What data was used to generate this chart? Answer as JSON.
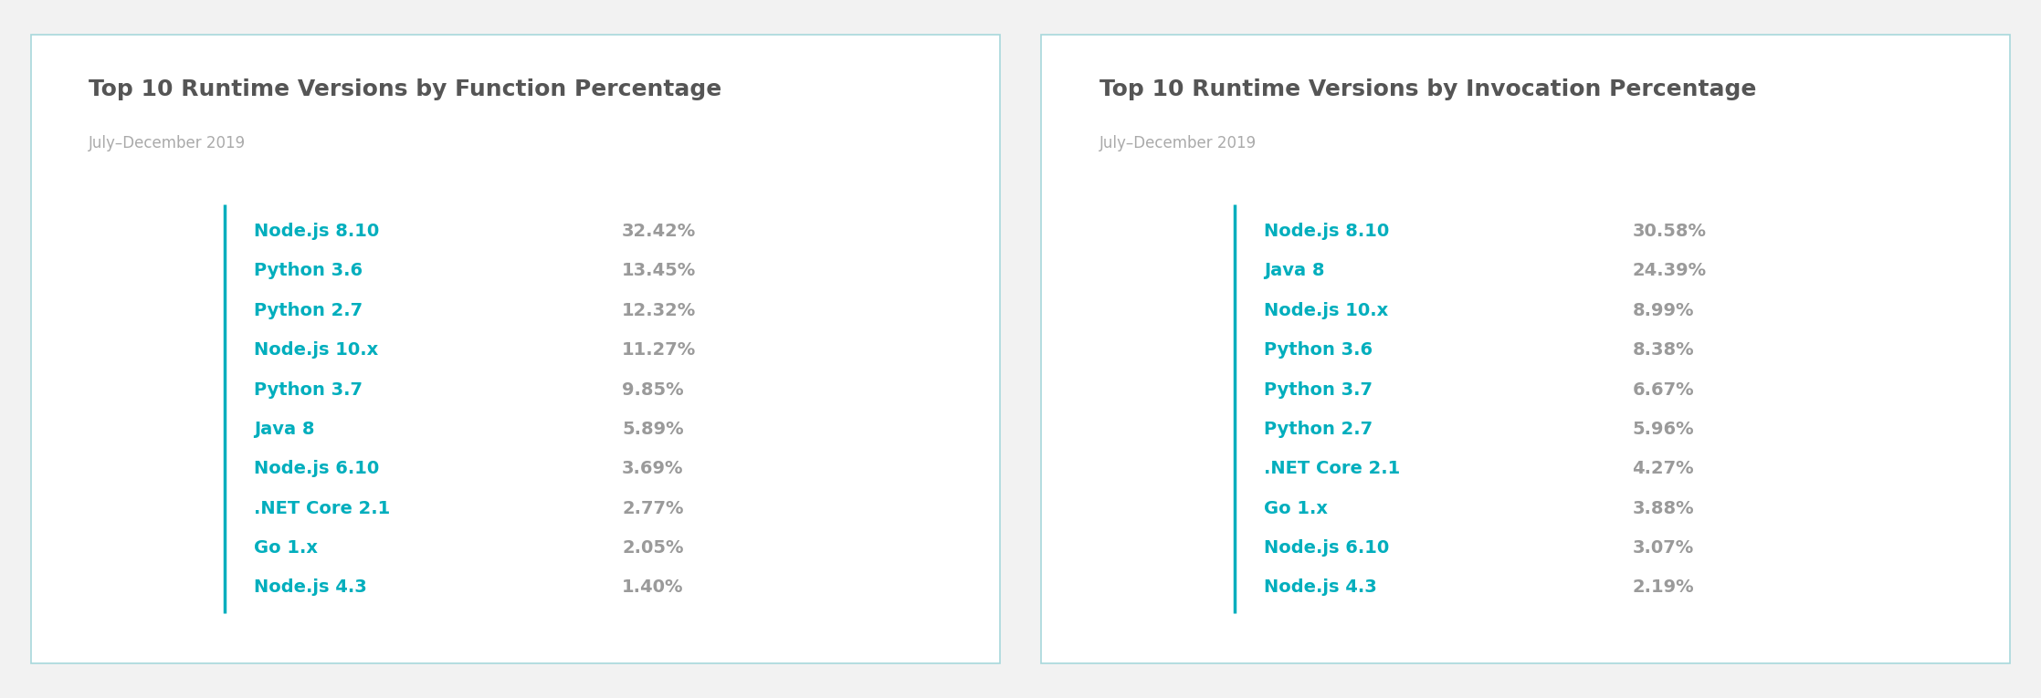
{
  "chart1": {
    "title": "Top 10 Runtime Versions by Function Percentage",
    "subtitle": "July–December 2019",
    "labels": [
      "Node.js 8.10",
      "Python 3.6",
      "Python 2.7",
      "Node.js 10.x",
      "Python 3.7",
      "Java 8",
      "Node.js 6.10",
      ".NET Core 2.1",
      "Go 1.x",
      "Node.js 4.3"
    ],
    "values": [
      "32.42%",
      "13.45%",
      "12.32%",
      "11.27%",
      "9.85%",
      "5.89%",
      "3.69%",
      "2.77%",
      "2.05%",
      "1.40%"
    ]
  },
  "chart2": {
    "title": "Top 10 Runtime Versions by Invocation Percentage",
    "subtitle": "July–December 2019",
    "labels": [
      "Node.js 8.10",
      "Java 8",
      "Node.js 10.x",
      "Python 3.6",
      "Python 3.7",
      "Python 2.7",
      ".NET Core 2.1",
      "Go 1.x",
      "Node.js 6.10",
      "Node.js 4.3"
    ],
    "values": [
      "30.58%",
      "24.39%",
      "8.99%",
      "8.38%",
      "6.67%",
      "5.96%",
      "4.27%",
      "3.88%",
      "3.07%",
      "2.19%"
    ]
  },
  "label_color": "#00AEBD",
  "value_color": "#9A9A9A",
  "title_color": "#555555",
  "subtitle_color": "#AAAAAA",
  "bg_color": "#FFFFFF",
  "outer_bg_color": "#F2F2F2",
  "border_color": "#A8D8DC",
  "divider_color": "#00AEBD",
  "title_fontsize": 18,
  "subtitle_fontsize": 12,
  "label_fontsize": 14,
  "value_fontsize": 14
}
